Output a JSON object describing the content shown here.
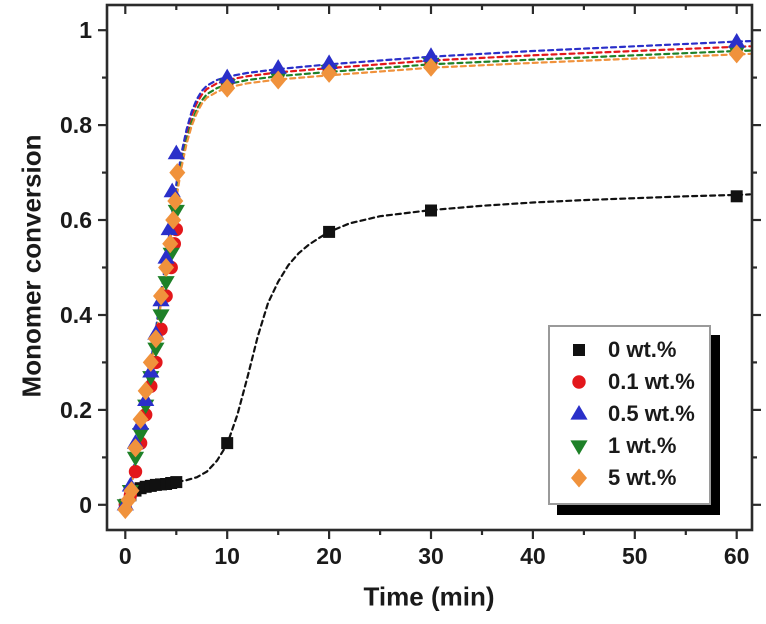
{
  "figure": {
    "background": "#ffffff",
    "frame_color": "#2b2b2b",
    "text_color": "#1a1a1a",
    "legend_border_color": "#9a9a9a",
    "legend_shadow_color": "#000000"
  },
  "chart_data": {
    "type": "scatter",
    "title": "",
    "xlabel": "Time (min)",
    "ylabel": "Monomer conversion",
    "xlim": [
      -1.8,
      61.5
    ],
    "ylim": [
      -0.053,
      1.053
    ],
    "grid": false,
    "legend_position": "lower-right",
    "x_major_ticks": [
      0,
      10,
      20,
      30,
      40,
      50,
      60
    ],
    "x_tick_labels": [
      "0",
      "10",
      "20",
      "30",
      "40",
      "50",
      "60"
    ],
    "x_minor_ticks": [
      5,
      15,
      25,
      35,
      45,
      55
    ],
    "y_major_ticks": [
      0,
      0.2,
      0.4,
      0.6,
      0.8,
      1
    ],
    "y_tick_labels": [
      "0",
      "0.2",
      "0.4",
      "0.6",
      "0.8",
      "1"
    ],
    "y_minor_ticks": [
      0.1,
      0.3,
      0.5,
      0.7,
      0.9
    ],
    "series": [
      {
        "name": "0 wt.%",
        "marker": "square",
        "color": "#111111",
        "line_color": "#111111",
        "points": [
          [
            0,
            0
          ],
          [
            0.5,
            0.02
          ],
          [
            1,
            0.03
          ],
          [
            1.5,
            0.035
          ],
          [
            2,
            0.038
          ],
          [
            2.5,
            0.04
          ],
          [
            3,
            0.042
          ],
          [
            3.5,
            0.043
          ],
          [
            4,
            0.044
          ],
          [
            4.5,
            0.046
          ],
          [
            5,
            0.048
          ],
          [
            10,
            0.13
          ],
          [
            20,
            0.575
          ],
          [
            30,
            0.62
          ],
          [
            60,
            0.65
          ]
        ],
        "fit": [
          [
            0.3,
            0.01
          ],
          [
            1,
            0.025
          ],
          [
            2,
            0.036
          ],
          [
            3,
            0.041
          ],
          [
            4,
            0.045
          ],
          [
            5,
            0.048
          ],
          [
            6,
            0.052
          ],
          [
            7,
            0.058
          ],
          [
            8,
            0.07
          ],
          [
            9,
            0.093
          ],
          [
            10,
            0.128
          ],
          [
            11,
            0.19
          ],
          [
            12,
            0.27
          ],
          [
            13,
            0.355
          ],
          [
            14,
            0.425
          ],
          [
            15,
            0.47
          ],
          [
            16,
            0.505
          ],
          [
            17,
            0.53
          ],
          [
            18,
            0.548
          ],
          [
            19,
            0.562
          ],
          [
            20,
            0.575
          ],
          [
            22,
            0.593
          ],
          [
            25,
            0.608
          ],
          [
            30,
            0.621
          ],
          [
            35,
            0.63
          ],
          [
            40,
            0.637
          ],
          [
            45,
            0.642
          ],
          [
            50,
            0.646
          ],
          [
            55,
            0.65
          ],
          [
            60,
            0.653
          ],
          [
            61.3,
            0.654
          ]
        ]
      },
      {
        "name": "0.1 wt.%",
        "marker": "circle",
        "color": "#e3171b",
        "line_color": "#e3171b",
        "points": [
          [
            0,
            0
          ],
          [
            0.5,
            0.02
          ],
          [
            1,
            0.07
          ],
          [
            1.5,
            0.13
          ],
          [
            2,
            0.19
          ],
          [
            2.5,
            0.25
          ],
          [
            3,
            0.3
          ],
          [
            3.5,
            0.37
          ],
          [
            4,
            0.44
          ],
          [
            4.5,
            0.5
          ],
          [
            4.8,
            0.55
          ],
          [
            5,
            0.58
          ],
          [
            10,
            0.89
          ],
          [
            15,
            0.908
          ],
          [
            20,
            0.918
          ],
          [
            30,
            0.933
          ],
          [
            60,
            0.963
          ]
        ],
        "fit": [
          [
            0,
            0
          ],
          [
            0.5,
            0.03
          ],
          [
            1,
            0.095
          ],
          [
            1.5,
            0.16
          ],
          [
            2,
            0.225
          ],
          [
            2.5,
            0.295
          ],
          [
            3,
            0.365
          ],
          [
            3.5,
            0.44
          ],
          [
            4,
            0.515
          ],
          [
            4.5,
            0.592
          ],
          [
            5,
            0.667
          ],
          [
            5.5,
            0.732
          ],
          [
            6,
            0.782
          ],
          [
            6.5,
            0.82
          ],
          [
            7,
            0.846
          ],
          [
            7.5,
            0.864
          ],
          [
            8,
            0.876
          ],
          [
            9,
            0.888
          ],
          [
            10,
            0.895
          ],
          [
            12,
            0.903
          ],
          [
            15,
            0.911
          ],
          [
            20,
            0.92
          ],
          [
            25,
            0.928
          ],
          [
            30,
            0.936
          ],
          [
            40,
            0.947
          ],
          [
            50,
            0.956
          ],
          [
            60,
            0.965
          ],
          [
            61.3,
            0.966
          ]
        ]
      },
      {
        "name": "0.5 wt.%",
        "marker": "triangle-up",
        "color": "#2a2fc9",
        "line_color": "#2a2fc9",
        "points": [
          [
            0,
            0
          ],
          [
            0.5,
            0.04
          ],
          [
            1,
            0.13
          ],
          [
            1.5,
            0.17
          ],
          [
            2,
            0.22
          ],
          [
            2.5,
            0.28
          ],
          [
            3,
            0.36
          ],
          [
            3.5,
            0.43
          ],
          [
            4,
            0.52
          ],
          [
            4.3,
            0.58
          ],
          [
            4.6,
            0.66
          ],
          [
            5,
            0.74
          ],
          [
            10,
            0.9
          ],
          [
            15,
            0.92
          ],
          [
            20,
            0.93
          ],
          [
            30,
            0.945
          ],
          [
            60,
            0.975
          ]
        ],
        "fit": [
          [
            0,
            0
          ],
          [
            0.5,
            0.035
          ],
          [
            1,
            0.1
          ],
          [
            1.5,
            0.165
          ],
          [
            2,
            0.23
          ],
          [
            2.5,
            0.3
          ],
          [
            3,
            0.37
          ],
          [
            3.5,
            0.445
          ],
          [
            4,
            0.52
          ],
          [
            4.5,
            0.6
          ],
          [
            5,
            0.675
          ],
          [
            5.5,
            0.74
          ],
          [
            6,
            0.79
          ],
          [
            6.5,
            0.828
          ],
          [
            7,
            0.854
          ],
          [
            7.5,
            0.872
          ],
          [
            8,
            0.883
          ],
          [
            9,
            0.895
          ],
          [
            10,
            0.902
          ],
          [
            12,
            0.91
          ],
          [
            15,
            0.918
          ],
          [
            20,
            0.928
          ],
          [
            25,
            0.936
          ],
          [
            30,
            0.944
          ],
          [
            40,
            0.956
          ],
          [
            50,
            0.966
          ],
          [
            60,
            0.976
          ],
          [
            61.3,
            0.977
          ]
        ]
      },
      {
        "name": "1 wt.%",
        "marker": "triangle-down",
        "color": "#1e8128",
        "line_color": "#1e8128",
        "points": [
          [
            0,
            0
          ],
          [
            0.5,
            0.03
          ],
          [
            1,
            0.1
          ],
          [
            1.5,
            0.15
          ],
          [
            2,
            0.21
          ],
          [
            2.5,
            0.27
          ],
          [
            3,
            0.33
          ],
          [
            3.5,
            0.4
          ],
          [
            4,
            0.47
          ],
          [
            4.5,
            0.53
          ],
          [
            5,
            0.62
          ],
          [
            10,
            0.885
          ],
          [
            15,
            0.9
          ],
          [
            20,
            0.915
          ],
          [
            30,
            0.93
          ],
          [
            60,
            0.955
          ]
        ],
        "fit": [
          [
            0,
            0
          ],
          [
            0.5,
            0.028
          ],
          [
            1,
            0.09
          ],
          [
            1.5,
            0.155
          ],
          [
            2,
            0.22
          ],
          [
            2.5,
            0.29
          ],
          [
            3,
            0.358
          ],
          [
            3.5,
            0.43
          ],
          [
            4,
            0.505
          ],
          [
            4.5,
            0.58
          ],
          [
            5,
            0.652
          ],
          [
            5.5,
            0.718
          ],
          [
            6,
            0.768
          ],
          [
            6.5,
            0.806
          ],
          [
            7,
            0.833
          ],
          [
            7.5,
            0.852
          ],
          [
            8,
            0.865
          ],
          [
            9,
            0.878
          ],
          [
            10,
            0.886
          ],
          [
            12,
            0.895
          ],
          [
            15,
            0.903
          ],
          [
            20,
            0.912
          ],
          [
            25,
            0.92
          ],
          [
            30,
            0.928
          ],
          [
            40,
            0.938
          ],
          [
            50,
            0.947
          ],
          [
            60,
            0.956
          ],
          [
            61.3,
            0.957
          ]
        ]
      },
      {
        "name": "5 wt.%",
        "marker": "diamond",
        "color": "#f0923c",
        "line_color": "#f0923c",
        "points": [
          [
            0,
            -0.01
          ],
          [
            0.3,
            0.01
          ],
          [
            0.6,
            0.03
          ],
          [
            1,
            0.12
          ],
          [
            1.5,
            0.18
          ],
          [
            2,
            0.24
          ],
          [
            2.5,
            0.3
          ],
          [
            3,
            0.35
          ],
          [
            3.5,
            0.44
          ],
          [
            4,
            0.5
          ],
          [
            4.4,
            0.55
          ],
          [
            4.7,
            0.6
          ],
          [
            4.9,
            0.64
          ],
          [
            5.1,
            0.7
          ],
          [
            10,
            0.878
          ],
          [
            15,
            0.895
          ],
          [
            20,
            0.909
          ],
          [
            30,
            0.922
          ],
          [
            60,
            0.95
          ]
        ],
        "fit": [
          [
            0,
            0
          ],
          [
            0.5,
            0.027
          ],
          [
            1,
            0.088
          ],
          [
            1.5,
            0.15
          ],
          [
            2,
            0.215
          ],
          [
            2.5,
            0.285
          ],
          [
            3,
            0.35
          ],
          [
            3.5,
            0.425
          ],
          [
            4,
            0.498
          ],
          [
            4.5,
            0.572
          ],
          [
            5,
            0.645
          ],
          [
            5.5,
            0.71
          ],
          [
            6,
            0.76
          ],
          [
            6.5,
            0.798
          ],
          [
            7,
            0.825
          ],
          [
            7.5,
            0.845
          ],
          [
            8,
            0.858
          ],
          [
            9,
            0.87
          ],
          [
            10,
            0.879
          ],
          [
            12,
            0.888
          ],
          [
            15,
            0.896
          ],
          [
            20,
            0.905
          ],
          [
            25,
            0.913
          ],
          [
            30,
            0.921
          ],
          [
            40,
            0.931
          ],
          [
            50,
            0.94
          ],
          [
            60,
            0.949
          ],
          [
            61.3,
            0.95
          ]
        ]
      }
    ]
  }
}
